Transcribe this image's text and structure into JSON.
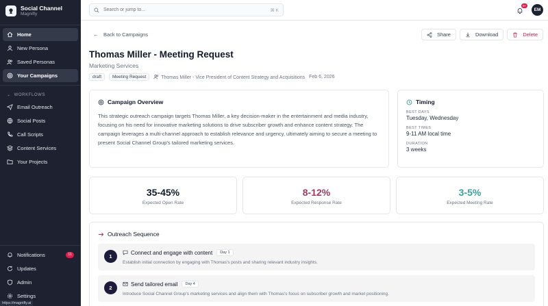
{
  "brand": {
    "name": "Social Channel",
    "sub": "Magnifly"
  },
  "nav": [
    {
      "label": "Home",
      "icon": "home-icon",
      "active": true
    },
    {
      "label": "New Persona",
      "icon": "user-icon"
    },
    {
      "label": "Saved Personas",
      "icon": "users-icon"
    },
    {
      "label": "Your Campaigns",
      "icon": "target-icon"
    }
  ],
  "workflows_label": "WORKFLOWS",
  "workflows": [
    {
      "label": "Email Outreach",
      "icon": "send-icon"
    },
    {
      "label": "Social Posts",
      "icon": "globe-icon"
    },
    {
      "label": "Call Scripts",
      "icon": "phone-icon"
    },
    {
      "label": "Content Services",
      "icon": "layers-icon"
    },
    {
      "label": "Your Projects",
      "icon": "folder-icon"
    }
  ],
  "bottom_nav": [
    {
      "label": "Notifications",
      "icon": "bell-icon",
      "badge": "11"
    },
    {
      "label": "Updates",
      "icon": "refresh-icon"
    },
    {
      "label": "Admin",
      "icon": "shield-icon"
    },
    {
      "label": "Settings",
      "icon": "gear-icon"
    }
  ],
  "status_url": "https://magnifly.ai",
  "search": {
    "placeholder": "Search or jump to...",
    "shortcut": "⌘ K"
  },
  "notif_badge": "9+",
  "avatar": "EM",
  "back_label": "Back to Campaigns",
  "actions": {
    "share": "Share",
    "download": "Download",
    "delete": "Delete"
  },
  "campaign": {
    "title": "Thomas Miller - Meeting Request",
    "subtitle": "Marketing Services",
    "tags": [
      "draft",
      "Meeting Request"
    ],
    "person": "Thomas Miller - Vice President of Content Strategy and Acquisitions",
    "date": "Feb 6, 2026"
  },
  "overview": {
    "heading": "Campaign Overview",
    "text": "This strategic outreach campaign targets Thomas Miller, a key decision-maker in the entertainment and media industry, focusing on his need for innovative marketing solutions to drive subscriber growth and enhance content strategy. The campaign leverages a multi-channel approach to establish relevance and urgency, ultimately aiming to secure a meeting to present Social Channel Group's tailored marketing services."
  },
  "timing": {
    "heading": "Timing",
    "best_days_label": "BEST DAYS",
    "best_days": "Tuesday, Wednesday",
    "best_times_label": "BEST TIMES",
    "best_times": "9-11 AM local time",
    "duration_label": "DURATION",
    "duration": "3 weeks"
  },
  "stats": [
    {
      "value": "35-45%",
      "caption": "Expected Open Rate",
      "color": "#111827"
    },
    {
      "value": "8-12%",
      "caption": "Expected Response Rate",
      "color": "#9f3a5e"
    },
    {
      "value": "3-5%",
      "caption": "Expected Meeting Rate",
      "color": "#3aa39a"
    }
  ],
  "sequence": {
    "heading": "Outreach Sequence",
    "steps": [
      {
        "num": "1",
        "title": "Connect and engage with content",
        "day": "Day 1",
        "desc": "Establish initial connection by engaging with Thomas's posts and sharing relevant industry insights.",
        "icon": "message-icon"
      },
      {
        "num": "2",
        "title": "Send tailored email",
        "day": "Day 4",
        "desc": "Introduce Social Channel Group's marketing services and align them with Thomas's focus on subscriber growth and market positioning.",
        "icon": "mail-icon"
      }
    ]
  },
  "colors": {
    "sidebar": "#1e2230",
    "accent_danger": "#e11d48",
    "teal": "#3aa39a",
    "rose": "#9f3a5e"
  }
}
